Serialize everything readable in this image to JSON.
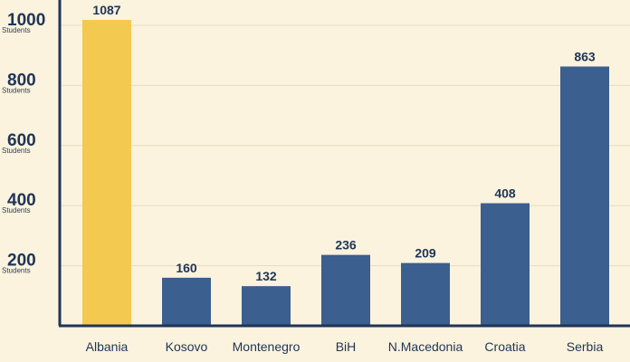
{
  "chart_data": {
    "type": "bar",
    "categories": [
      "Albania",
      "Kosovo",
      "Montenegro",
      "BiH",
      "N.Macedonia",
      "Croatia",
      "Serbia"
    ],
    "values": [
      1087,
      160,
      132,
      236,
      209,
      408,
      863
    ],
    "data_labels": [
      "1087",
      "160",
      "132",
      "236",
      "209",
      "408",
      "863"
    ],
    "ylim": [
      0,
      1000
    ],
    "yticks": [
      {
        "value": 200,
        "label": "200",
        "unit": "Students"
      },
      {
        "value": 400,
        "label": "400",
        "unit": "Students"
      },
      {
        "value": 600,
        "label": "600",
        "unit": "Students"
      },
      {
        "value": 800,
        "label": "800",
        "unit": "Students"
      },
      {
        "value": 1000,
        "label": "1000",
        "unit": "Students"
      }
    ],
    "grid": true,
    "colors": {
      "highlight": "#f3c94f",
      "default": "#3b5f8e",
      "axis": "#1f3557",
      "grid": "#e8dcc0",
      "background": "#fbf3dd"
    },
    "highlight_category": "Albania"
  }
}
